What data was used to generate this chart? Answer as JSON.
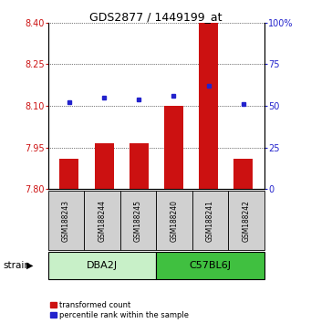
{
  "title": "GDS2877 / 1449199_at",
  "samples": [
    "GSM188243",
    "GSM188244",
    "GSM188245",
    "GSM188240",
    "GSM188241",
    "GSM188242"
  ],
  "red_values": [
    7.91,
    7.965,
    7.965,
    8.1,
    8.4,
    7.91
  ],
  "blue_values": [
    52,
    55,
    54,
    56,
    62,
    51
  ],
  "ylim_left": [
    7.8,
    8.4
  ],
  "ylim_right": [
    0,
    100
  ],
  "yticks_left": [
    7.8,
    7.95,
    8.1,
    8.25,
    8.4
  ],
  "yticks_right": [
    0,
    25,
    50,
    75,
    100
  ],
  "ytick_labels_right": [
    "0",
    "25",
    "50",
    "75",
    "100%"
  ],
  "baseline": 7.8,
  "groups": [
    {
      "label": "DBA2J",
      "color": "#c8f0c8"
    },
    {
      "label": "C57BL6J",
      "color": "#40c040"
    }
  ],
  "strain_label": "strain",
  "red_color": "#cc1111",
  "blue_color": "#2222cc",
  "bar_width": 0.55,
  "background_color": "#ffffff",
  "title_fontsize": 9,
  "tick_fontsize": 7,
  "sample_fontsize": 5.5,
  "group_fontsize": 8,
  "legend_fontsize": 6,
  "legend_items": [
    "transformed count",
    "percentile rank within the sample"
  ]
}
